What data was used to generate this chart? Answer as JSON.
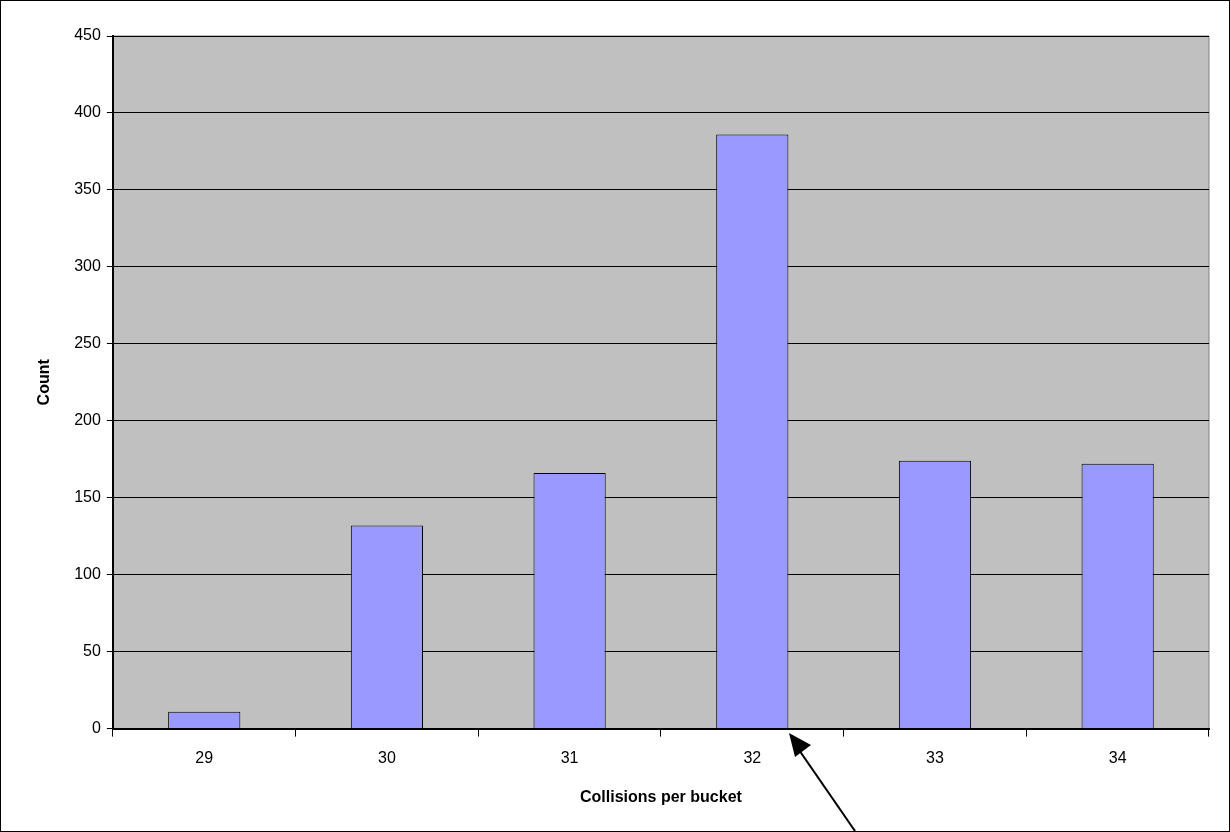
{
  "chart_data": {
    "type": "bar",
    "xlabel": "Collisions per bucket",
    "ylabel": "Count",
    "categories": [
      "29",
      "30",
      "31",
      "32",
      "33",
      "34"
    ],
    "values": [
      11,
      132,
      166,
      386,
      174,
      172
    ],
    "color": "#9999ff",
    "ylim": [
      0,
      450
    ],
    "yticks": [
      0,
      50,
      100,
      150,
      200,
      250,
      300,
      350,
      400,
      450
    ],
    "grid": "y",
    "legend": false
  }
}
